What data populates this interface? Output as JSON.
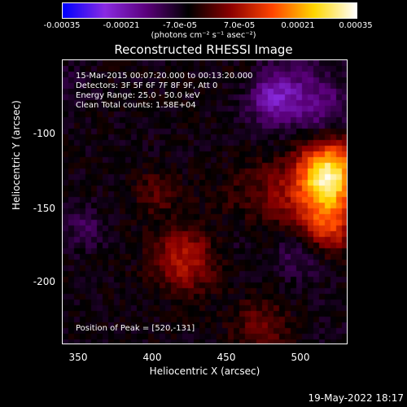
{
  "colorbar": {
    "ticks": [
      "-0.00035",
      "-0.00021",
      "-7.0e-05",
      "7.0e-05",
      "0.00021",
      "0.00035"
    ],
    "unit": "(photons cm⁻² s⁻¹ asec⁻²)"
  },
  "annotations": {
    "time_range": "15-Mar-2015 00:07:20.000 to 00:13:20.000",
    "detectors": "Detectors: 3F 5F 6F 7F 8F 9F, Att 0",
    "energy": "Energy Range: 25.0 - 50.0 keV",
    "clean": "Clean     Total counts: 1.58E+04",
    "peak": "Position of Peak = [520,-131]"
  },
  "footer": {
    "date": "19-May-2022 18:17"
  },
  "chart_data": {
    "type": "heatmap",
    "title": "Reconstructed RHESSI Image",
    "xlabel": "Heliocentric X (arcsec)",
    "ylabel": "Heliocentric Y (arcsec)",
    "xlim": [
      339,
      532
    ],
    "ylim": [
      -243,
      -53
    ],
    "xticks": [
      350,
      400,
      450,
      500
    ],
    "yticks": [
      -100,
      -150,
      -200
    ],
    "colorbar_range": [
      -0.00035,
      0.00035
    ],
    "colorscale": [
      "#0000ff",
      "#8a2be2",
      "#5a007a",
      "#000000",
      "#8b0000",
      "#ff4500",
      "#ffd700",
      "#ffffff"
    ],
    "peak_position": [
      520,
      -131
    ]
  }
}
